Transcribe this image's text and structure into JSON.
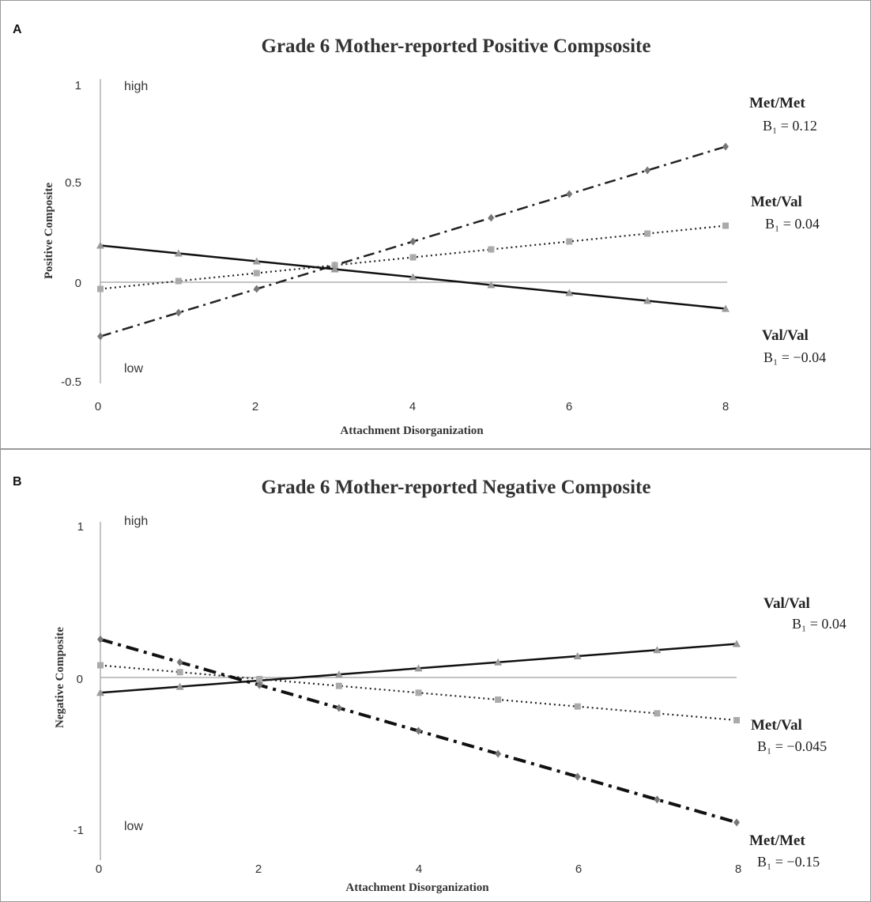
{
  "chart_data": [
    {
      "type": "line",
      "panel": "A",
      "title": "Grade 6 Mother-reported Positive Compsosite",
      "xlabel": "Attachment Disorganization",
      "ylabel": "Positive Composite",
      "xlim": [
        0,
        8
      ],
      "ylim": [
        -0.5,
        1
      ],
      "x_ticks": [
        "0",
        "2",
        "4",
        "6",
        "8"
      ],
      "y_ticks": [
        "1",
        "0.5",
        "0",
        "-0.5"
      ],
      "high_label": "high",
      "low_label": "low",
      "x": [
        0,
        1,
        2,
        3,
        4,
        5,
        6,
        7,
        8
      ],
      "series": [
        {
          "name": "Met/Met",
          "coef": "B₁ = 0.12",
          "style": "dashdot",
          "marker": "diamond",
          "values": [
            -0.27,
            -0.15,
            -0.03,
            0.09,
            0.21,
            0.33,
            0.45,
            0.57,
            0.69
          ]
        },
        {
          "name": "Met/Val",
          "coef": "B₁ = 0.04",
          "style": "dotted",
          "marker": "square",
          "values": [
            -0.03,
            0.01,
            0.05,
            0.09,
            0.13,
            0.17,
            0.21,
            0.25,
            0.29
          ]
        },
        {
          "name": "Val/Val",
          "coef": "B₁ = −0.04",
          "style": "solid",
          "marker": "triangle",
          "values": [
            0.19,
            0.15,
            0.11,
            0.07,
            0.03,
            -0.01,
            -0.05,
            -0.09,
            -0.13
          ]
        }
      ]
    },
    {
      "type": "line",
      "panel": "B",
      "title": "Grade 6 Mother-reported Negative Composite",
      "xlabel": "Attachment Disorganization",
      "ylabel": "Negative Composite",
      "xlim": [
        0,
        8
      ],
      "ylim": [
        -1,
        1
      ],
      "x_ticks": [
        "0",
        "2",
        "4",
        "6",
        "8"
      ],
      "y_ticks": [
        "1",
        "0",
        "-1"
      ],
      "high_label": "high",
      "low_label": "low",
      "x": [
        0,
        1,
        2,
        3,
        4,
        5,
        6,
        7,
        8
      ],
      "series": [
        {
          "name": "Val/Val",
          "coef": "B₁ = 0.04",
          "style": "solid",
          "marker": "triangle",
          "values": [
            -0.1,
            -0.06,
            -0.02,
            0.02,
            0.06,
            0.1,
            0.14,
            0.18,
            0.22
          ]
        },
        {
          "name": "Met/Val",
          "coef": "B₁ = −0.045",
          "style": "dotted",
          "marker": "square",
          "values": [
            0.08,
            0.035,
            -0.01,
            -0.055,
            -0.1,
            -0.145,
            -0.19,
            -0.235,
            -0.28
          ]
        },
        {
          "name": "Met/Met",
          "coef": "B₁ = −0.15",
          "style": "dashdot-heavy",
          "marker": "diamond",
          "values": [
            0.25,
            0.1,
            -0.05,
            -0.2,
            -0.35,
            -0.5,
            -0.65,
            -0.8,
            -0.95
          ]
        }
      ]
    }
  ]
}
